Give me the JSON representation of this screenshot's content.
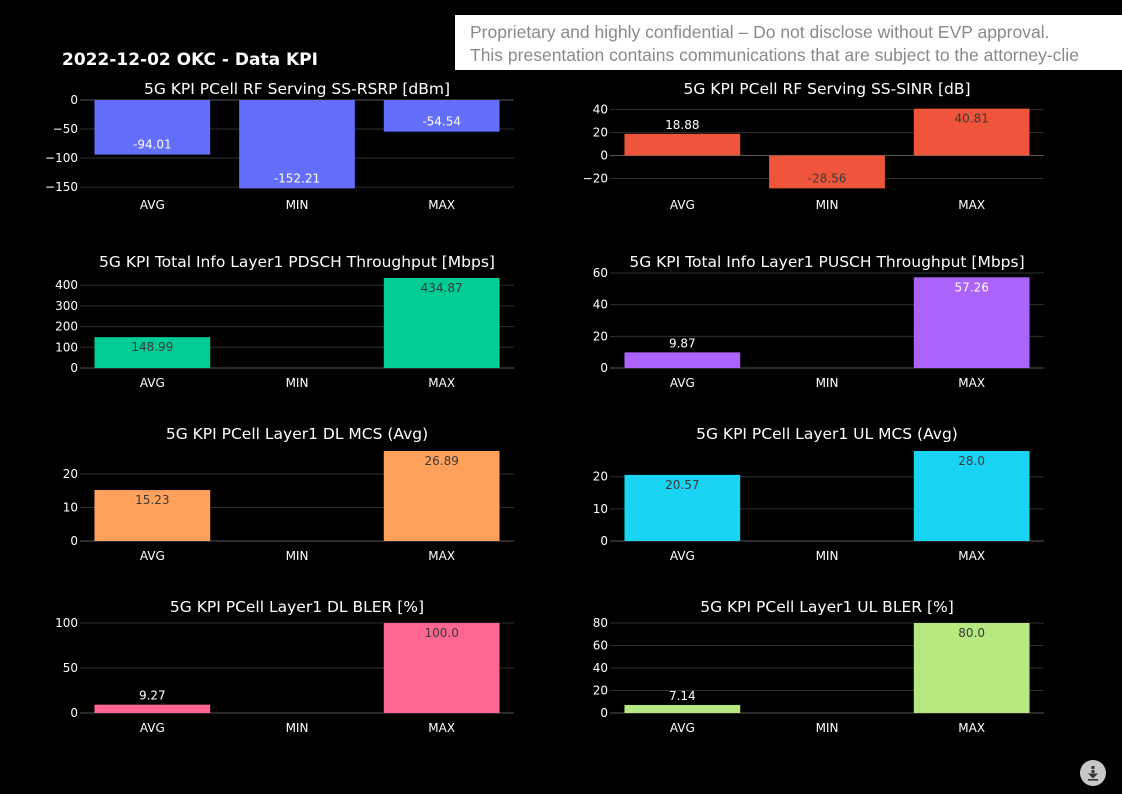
{
  "page": {
    "title": "2022-12-02 OKC - Data KPI"
  },
  "banner": {
    "line1": "Proprietary and highly confidential – Do not disclose without EVP approval.",
    "line2": "This presentation contains communications that are subject to the attorney-clie"
  },
  "toolbar": {
    "download_icon": "download-icon"
  },
  "chart_data": [
    {
      "type": "bar",
      "title": "5G KPI PCell RF Serving SS-RSRP [dBm]",
      "categories": [
        "AVG",
        "MIN",
        "MAX"
      ],
      "values": [
        -94.01,
        -152.21,
        -54.54
      ],
      "labels": [
        "-94.01",
        "-152.21",
        "-54.54"
      ],
      "ylim": [
        -155,
        0
      ],
      "yticks": [
        0,
        -50,
        -100,
        -150
      ],
      "ytick_labels": [
        "0",
        "−50",
        "−100",
        "−150"
      ],
      "color": "#636efa",
      "label_color": "#ffffff",
      "grid": true
    },
    {
      "type": "bar",
      "title": "5G KPI PCell RF Serving SS-SINR [dB]",
      "categories": [
        "AVG",
        "MIN",
        "MAX"
      ],
      "values": [
        18.88,
        -28.56,
        40.81
      ],
      "labels": [
        "18.88",
        "-28.56",
        "40.81"
      ],
      "ylim": [
        -30,
        44
      ],
      "yticks": [
        40,
        20,
        0,
        -20
      ],
      "ytick_labels": [
        "40",
        "20",
        "0",
        "−20"
      ],
      "color": "#ef553b",
      "label_color": "#3a3a3a",
      "grid": true
    },
    {
      "type": "bar",
      "title": "5G KPI Total Info Layer1 PDSCH Throughput [Mbps]",
      "categories": [
        "AVG",
        "MIN",
        "MAX"
      ],
      "values": [
        148.99,
        0,
        434.87
      ],
      "labels": [
        "148.99",
        "",
        "434.87"
      ],
      "ylim": [
        0,
        434.87
      ],
      "yticks": [
        0,
        100,
        200,
        300,
        400
      ],
      "ytick_labels": [
        "0",
        "100",
        "200",
        "300",
        "400"
      ],
      "color": "#00cc96",
      "label_color": "#3a3a3a",
      "grid": true
    },
    {
      "type": "bar",
      "title": "5G KPI Total Info Layer1 PUSCH Throughput [Mbps]",
      "categories": [
        "AVG",
        "MIN",
        "MAX"
      ],
      "values": [
        9.87,
        0,
        57.26
      ],
      "labels": [
        "9.87",
        "",
        "57.26"
      ],
      "ylim": [
        0,
        60
      ],
      "yticks": [
        0,
        20,
        40,
        60
      ],
      "ytick_labels": [
        "0",
        "20",
        "40",
        "60"
      ],
      "color": "#ab63fa",
      "label_color": "#ffffff",
      "grid": true
    },
    {
      "type": "bar",
      "title": "5G KPI PCell Layer1 DL MCS (Avg)",
      "categories": [
        "AVG",
        "MIN",
        "MAX"
      ],
      "values": [
        15.23,
        0,
        26.89
      ],
      "labels": [
        "15.23",
        "",
        "26.89"
      ],
      "ylim": [
        0,
        26.89
      ],
      "yticks": [
        0,
        10,
        20
      ],
      "ytick_labels": [
        "0",
        "10",
        "20"
      ],
      "color": "#ffa15a",
      "label_color": "#3a3a3a",
      "grid": true
    },
    {
      "type": "bar",
      "title": "5G KPI PCell Layer1 UL MCS (Avg)",
      "categories": [
        "AVG",
        "MIN",
        "MAX"
      ],
      "values": [
        20.57,
        0,
        28.0
      ],
      "labels": [
        "20.57",
        "",
        "28.0"
      ],
      "ylim": [
        0,
        28
      ],
      "yticks": [
        0,
        10,
        20
      ],
      "ytick_labels": [
        "0",
        "10",
        "20"
      ],
      "color": "#19d3f3",
      "label_color": "#3a3a3a",
      "grid": true
    },
    {
      "type": "bar",
      "title": "5G KPI PCell Layer1 DL BLER [%]",
      "categories": [
        "AVG",
        "MIN",
        "MAX"
      ],
      "values": [
        9.27,
        0,
        100.0
      ],
      "labels": [
        "9.27",
        "",
        "100.0"
      ],
      "ylim": [
        0,
        100
      ],
      "yticks": [
        0,
        50,
        100
      ],
      "ytick_labels": [
        "0",
        "50",
        "100"
      ],
      "color": "#ff6692",
      "label_color": "#3a3a3a",
      "grid": true
    },
    {
      "type": "bar",
      "title": "5G KPI PCell Layer1 UL BLER [%]",
      "categories": [
        "AVG",
        "MIN",
        "MAX"
      ],
      "values": [
        7.14,
        0,
        80.0
      ],
      "labels": [
        "7.14",
        "",
        "80.0"
      ],
      "ylim": [
        0,
        80
      ],
      "yticks": [
        0,
        20,
        40,
        60,
        80
      ],
      "ytick_labels": [
        "0",
        "20",
        "40",
        "60",
        "80"
      ],
      "color": "#b6e880",
      "label_color": "#3a3a3a",
      "grid": true
    }
  ]
}
